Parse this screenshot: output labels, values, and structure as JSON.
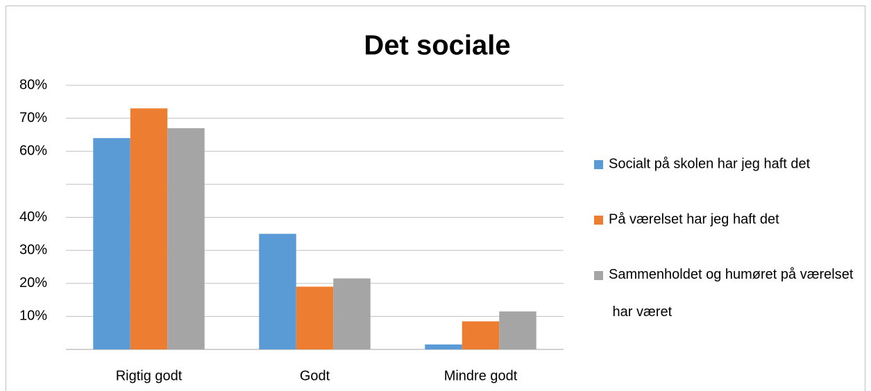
{
  "chart_data": {
    "type": "bar",
    "title": "Det sociale",
    "categories": [
      "Rigtig godt",
      "Godt",
      "Mindre godt"
    ],
    "series": [
      {
        "name": "Socialt på skolen har jeg haft det",
        "color": "#5b9bd5",
        "values": [
          64,
          35,
          1.5
        ]
      },
      {
        "name": "På værelset har jeg haft det",
        "color": "#ed7d31",
        "values": [
          73,
          19,
          8.5
        ]
      },
      {
        "name": "Sammenholdet og humøret på værelset har været",
        "color": "#a5a5a5",
        "values": [
          67,
          21.5,
          11.5
        ]
      }
    ],
    "ylim": [
      0,
      80
    ],
    "yticks": [
      {
        "value": 0,
        "label": null
      },
      {
        "value": 10,
        "label": "10%"
      },
      {
        "value": 20,
        "label": "20%"
      },
      {
        "value": 30,
        "label": "30%"
      },
      {
        "value": 40,
        "label": "40%"
      },
      {
        "value": 50,
        "label": null
      },
      {
        "value": 60,
        "label": "60%"
      },
      {
        "value": 70,
        "label": "70%"
      },
      {
        "value": 80,
        "label": "80%"
      }
    ],
    "grid": true,
    "legend": "right"
  }
}
